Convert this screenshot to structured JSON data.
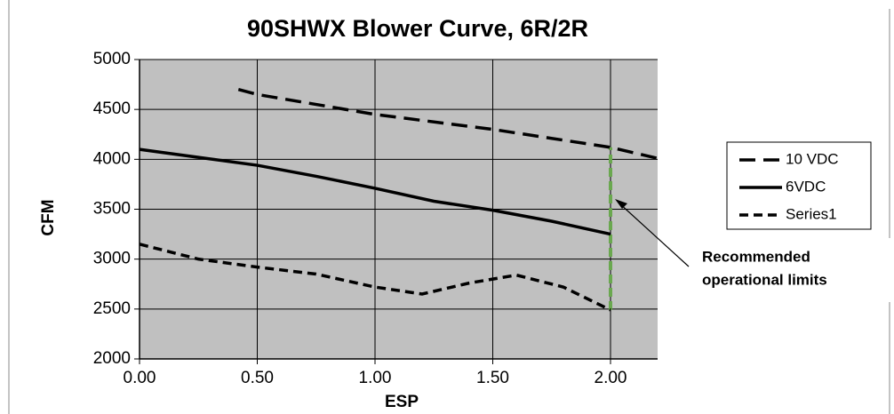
{
  "chart_data": {
    "type": "line",
    "title": "90SHWX Blower Curve, 6R/2R",
    "x_label": "ESP",
    "y_label": "CFM",
    "xlim": [
      0,
      2.2
    ],
    "xticks": [
      {
        "value": 0,
        "label": "0.00"
      },
      {
        "value": 0.5,
        "label": "0.50"
      },
      {
        "value": 1,
        "label": "1.00"
      },
      {
        "value": 1.5,
        "label": "1.50"
      },
      {
        "value": 2,
        "label": "2.00"
      }
    ],
    "ylim": [
      2000,
      5000
    ],
    "yticks": [
      2000,
      2500,
      3000,
      3500,
      4000,
      4500,
      5000
    ],
    "grid": true,
    "legend": "right",
    "series": [
      {
        "name": "10 VDC",
        "color": "#000000",
        "dash": "long",
        "x": [
          0.42,
          0.5,
          1.0,
          1.5,
          2.0,
          2.2
        ],
        "values": [
          4700,
          4650,
          4450,
          4300,
          4120,
          4010
        ]
      },
      {
        "name": "6VDC",
        "color": "#000000",
        "dash": "solid",
        "x": [
          0,
          0.25,
          0.5,
          0.75,
          1.0,
          1.25,
          1.5,
          1.75,
          2.0
        ],
        "values": [
          4100,
          4020,
          3940,
          3830,
          3710,
          3580,
          3490,
          3380,
          3250
        ]
      },
      {
        "name": "Series1",
        "color": "#000000",
        "dash": "short",
        "x": [
          0,
          0.25,
          0.5,
          0.75,
          1.0,
          1.2,
          1.4,
          1.6,
          1.8,
          2.0
        ],
        "values": [
          3150,
          3000,
          2920,
          2850,
          2720,
          2650,
          2760,
          2840,
          2720,
          2490
        ]
      }
    ],
    "annotation": {
      "text": [
        "Recommended",
        "operational limits"
      ],
      "x": 2.0,
      "y_range": [
        2490,
        4120
      ],
      "color": "#6aa84f"
    }
  }
}
